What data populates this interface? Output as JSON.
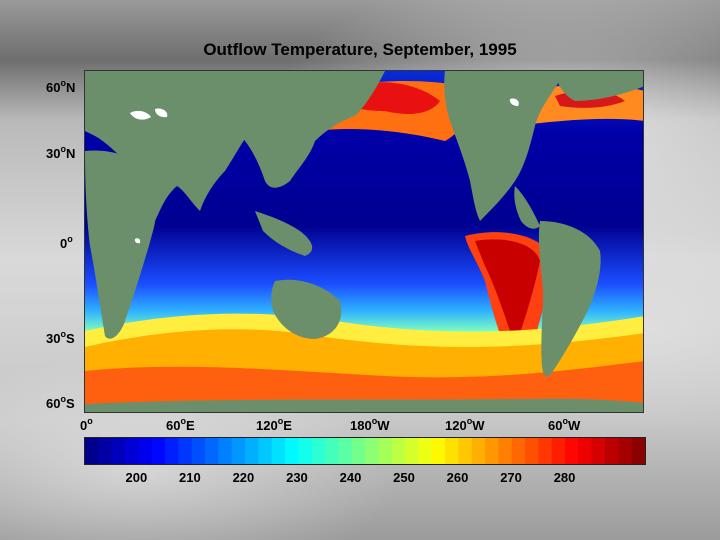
{
  "title": "Outflow Temperature, September, 1995",
  "lat_labels": [
    {
      "text": "60",
      "sup": "o",
      "dir": "N"
    },
    {
      "text": "30",
      "sup": "o",
      "dir": "N"
    },
    {
      "text": "0",
      "sup": "o",
      "dir": ""
    },
    {
      "text": "30",
      "sup": "o",
      "dir": "S"
    },
    {
      "text": "60",
      "sup": "o",
      "dir": "S"
    }
  ],
  "lon_labels": [
    {
      "text": "0",
      "sup": "o",
      "dir": ""
    },
    {
      "text": "60",
      "sup": "o",
      "dir": "E"
    },
    {
      "text": "120",
      "sup": "o",
      "dir": "E"
    },
    {
      "text": "180",
      "sup": "o",
      "dir": "W"
    },
    {
      "text": "120",
      "sup": "o",
      "dir": "W"
    },
    {
      "text": "60",
      "sup": "o",
      "dir": "W"
    }
  ],
  "colorbar": {
    "ticks": [
      "200",
      "210",
      "220",
      "230",
      "240",
      "250",
      "260",
      "270",
      "280"
    ],
    "range": [
      190,
      295
    ]
  },
  "colors": {
    "land": "#6b8f6b",
    "ice": "#ffffff"
  }
}
